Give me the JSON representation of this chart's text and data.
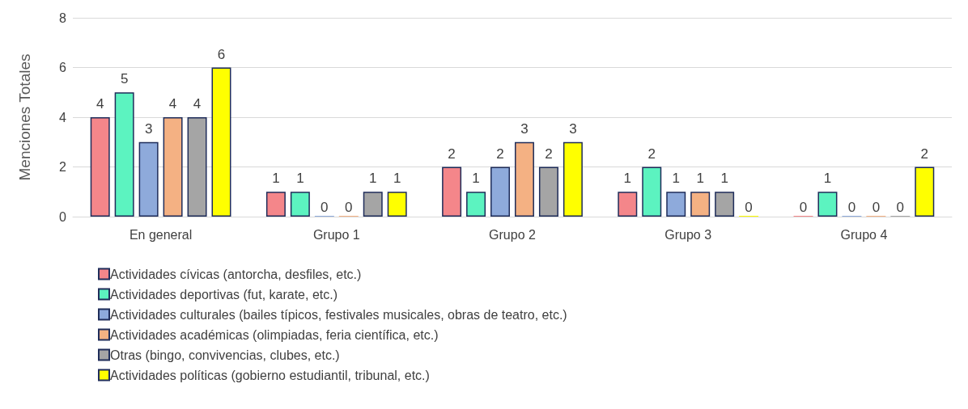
{
  "chart_data": {
    "type": "bar",
    "ylabel": "Menciones Totales",
    "categories": [
      "En general",
      "Grupo 1",
      "Grupo 2",
      "Grupo 3",
      "Grupo 4"
    ],
    "series": [
      {
        "name": "Actividades cívicas (antorcha, desfiles, etc.)",
        "color": "#f4868a",
        "values": [
          4,
          1,
          2,
          1,
          0
        ]
      },
      {
        "name": "Actividades deportivas (fut, karate, etc.)",
        "color": "#5cf3c0",
        "values": [
          5,
          1,
          1,
          2,
          1
        ]
      },
      {
        "name": "Actividades culturales (bailes típicos, festivales musicales, obras de teatro, etc.)",
        "color": "#8eaadb",
        "values": [
          3,
          0,
          2,
          1,
          0
        ]
      },
      {
        "name": "Actividades académicas (olimpiadas, feria científica, etc.)",
        "color": "#f4b183",
        "values": [
          4,
          0,
          3,
          1,
          0
        ]
      },
      {
        "name": "Otras (bingo, convivencias, clubes, etc.)",
        "color": "#a5a5a5",
        "values": [
          4,
          1,
          2,
          1,
          0
        ]
      },
      {
        "name": "Actividades políticas (gobierno estudiantil, tribunal, etc.)",
        "color": "#ffff00",
        "values": [
          6,
          1,
          3,
          0,
          2
        ]
      }
    ],
    "ylim": [
      0,
      8
    ],
    "yticks": [
      0,
      2,
      4,
      6,
      8
    ],
    "grid": "y",
    "legend": "bottom left",
    "data_labels": true
  }
}
